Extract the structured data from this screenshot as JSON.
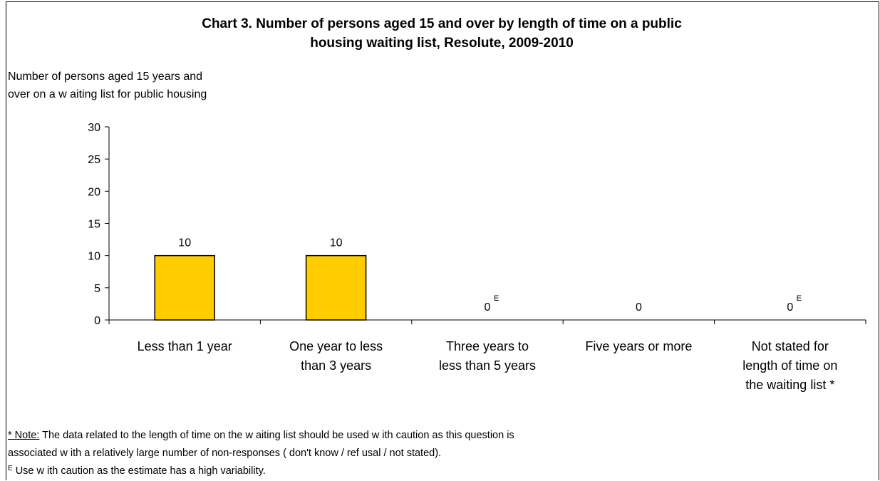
{
  "chart_data": {
    "type": "bar",
    "title_line1": "Chart 3. Number of persons aged 15 and over by length of time on a public",
    "title_line2": "housing waiting list, Resolute, 2009-2010",
    "ylabel_line1": "Number of persons aged 15 years and",
    "ylabel_line2": "over on a w aiting list for public housing",
    "categories": [
      [
        "Less than 1 year"
      ],
      [
        "One year to less",
        "than 3 years"
      ],
      [
        "Three years to",
        "less than 5 years"
      ],
      [
        "Five years or more"
      ],
      [
        "Not stated for",
        "length of time on",
        "the waiting list *"
      ]
    ],
    "values": [
      10,
      10,
      0,
      0,
      0
    ],
    "value_labels": [
      "10",
      "10",
      "0",
      "0",
      "0"
    ],
    "value_flags": [
      "",
      "",
      "E",
      "",
      "E"
    ],
    "ylim": [
      0,
      30
    ],
    "yticks": [
      0,
      5,
      10,
      15,
      20,
      25,
      30
    ],
    "bar_color": "#FFCC00",
    "bar_stroke": "#000000",
    "grid": false,
    "legend": "none"
  },
  "notes": {
    "note_head": "* Note:",
    "note_text": " The data related to the length of time on the w aiting list should be used w ith caution as this question is",
    "note_text2": "associated w ith a relatively large number of non-responses ( don't know / ref usal / not stated).",
    "e_mark": "E",
    "e_text": "  Use w ith caution as the estimate has a high variability."
  }
}
